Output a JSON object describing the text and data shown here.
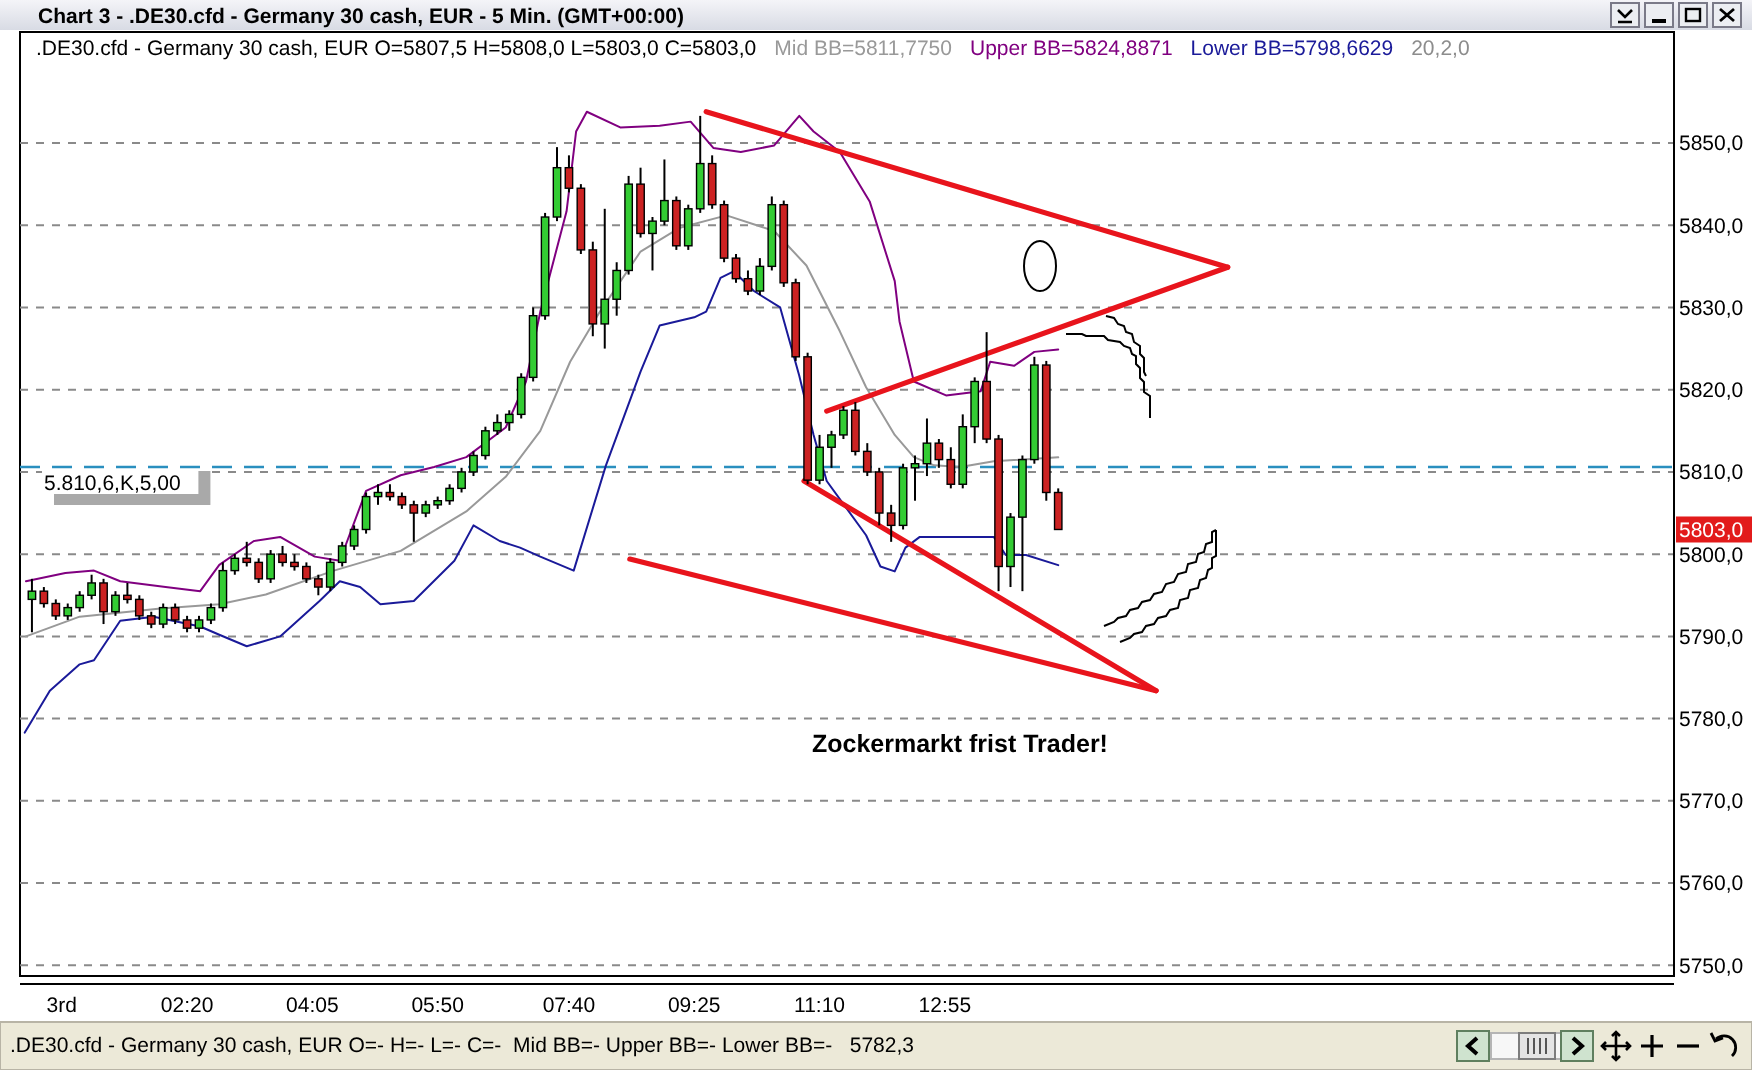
{
  "chart_data": {
    "type": "candlestick",
    "title": "Chart 3 - .DE30.cfd - Germany 30 cash, EUR - 5 Min. (GMT+00:00)",
    "subtitle": ".DE30.cfd - Germany 30 cash, EUR O=5807,5 H=5808,0 L=5803,0 C=5803,0",
    "x": [
      "--01-03T00:10",
      "--01-03T00:20",
      "--01-03T00:30",
      "--01-03T00:40",
      "--01-03T00:50",
      "--01-03T01:00",
      "--01-03T01:10",
      "--01-03T01:20",
      "--01-03T01:30",
      "--01-03T01:40",
      "--01-03T01:50",
      "--01-03T02:00",
      "--01-03T02:10",
      "--01-03T02:20",
      "--01-03T02:30",
      "--01-03T02:40",
      "--01-03T02:50",
      "--01-03T03:00",
      "--01-03T03:10",
      "--01-03T03:20",
      "--01-03T03:30",
      "--01-03T03:40",
      "--01-03T03:50",
      "--01-03T04:00",
      "--01-03T04:10",
      "--01-03T04:20",
      "--01-03T04:30",
      "--01-03T04:40",
      "--01-03T04:50",
      "--01-03T05:00",
      "--01-03T05:10",
      "--01-03T05:20",
      "--01-03T05:30",
      "--01-03T05:40",
      "--01-03T05:50",
      "--01-03T06:00",
      "--01-03T06:10",
      "--01-03T06:20",
      "--01-03T06:30",
      "--01-03T06:40",
      "--01-03T06:50",
      "--01-03T07:00",
      "--01-03T07:10",
      "--01-03T07:20",
      "--01-03T07:30",
      "--01-03T07:40",
      "--01-03T07:50",
      "--01-03T08:00",
      "--01-03T08:10",
      "--01-03T08:20",
      "--01-03T08:30",
      "--01-03T08:40",
      "--01-03T08:50",
      "--01-03T09:00",
      "--01-03T09:10",
      "--01-03T09:20",
      "--01-03T09:30",
      "--01-03T09:40",
      "--01-03T09:50",
      "--01-03T10:00",
      "--01-03T10:10",
      "--01-03T10:20",
      "--01-03T10:30",
      "--01-03T10:40",
      "--01-03T10:50",
      "--01-03T11:00",
      "--01-03T11:10",
      "--01-03T11:20",
      "--01-03T11:30",
      "--01-03T11:40",
      "--01-03T11:50",
      "--01-03T12:00",
      "--01-03T12:10",
      "--01-03T12:20",
      "--01-03T12:30",
      "--01-03T12:40",
      "--01-03T12:50",
      "--01-03T13:00",
      "--01-03T13:10",
      "--01-03T13:20",
      "--01-03T13:30",
      "--01-03T13:40",
      "--01-03T13:50",
      "--01-03T14:00",
      "--01-03T14:10",
      "--01-03T14:20",
      "--01-03T14:30"
    ],
    "ohlc": [
      [
        5794.5,
        5797,
        5790.5,
        5795.5
      ],
      [
        5795.5,
        5796,
        5793.5,
        5794
      ],
      [
        5794,
        5794.5,
        5792,
        5792.5
      ],
      [
        5792.5,
        5794,
        5792,
        5793.5
      ],
      [
        5793.5,
        5795.5,
        5793,
        5795
      ],
      [
        5795,
        5797.5,
        5794.5,
        5796.5
      ],
      [
        5796.5,
        5797,
        5791.5,
        5793
      ],
      [
        5793,
        5795.5,
        5792.5,
        5795
      ],
      [
        5795,
        5796.5,
        5794,
        5794.5
      ],
      [
        5794.5,
        5795,
        5792,
        5792.5
      ],
      [
        5792.5,
        5793,
        5791,
        5791.5
      ],
      [
        5791.5,
        5794,
        5791,
        5793.5
      ],
      [
        5793.5,
        5794,
        5791.5,
        5792
      ],
      [
        5792,
        5792.5,
        5790.5,
        5791
      ],
      [
        5791,
        5792.5,
        5790.5,
        5792
      ],
      [
        5792,
        5794,
        5791.5,
        5793.5
      ],
      [
        5793.5,
        5799,
        5793,
        5798
      ],
      [
        5798,
        5800,
        5797.5,
        5799.5
      ],
      [
        5799.5,
        5801.5,
        5798.5,
        5799
      ],
      [
        5799,
        5799.5,
        5796.5,
        5797
      ],
      [
        5797,
        5800.5,
        5796.5,
        5800
      ],
      [
        5800,
        5801,
        5798.5,
        5799
      ],
      [
        5799,
        5800,
        5798,
        5798.5
      ],
      [
        5798.5,
        5799,
        5796.5,
        5797
      ],
      [
        5797,
        5797.5,
        5795,
        5796
      ],
      [
        5796,
        5799.5,
        5795.5,
        5799
      ],
      [
        5799,
        5801.5,
        5798.5,
        5801
      ],
      [
        5801,
        5803.5,
        5800.5,
        5803
      ],
      [
        5803,
        5807.5,
        5802.5,
        5807
      ],
      [
        5807,
        5808.5,
        5806,
        5807.5
      ],
      [
        5807.5,
        5808.5,
        5806.5,
        5807
      ],
      [
        5807,
        5807.5,
        5805.5,
        5806
      ],
      [
        5806,
        5806.5,
        5801.5,
        5805
      ],
      [
        5805,
        5806.5,
        5804.5,
        5806
      ],
      [
        5806,
        5807,
        5805.5,
        5806.5
      ],
      [
        5806.5,
        5808.5,
        5806,
        5808
      ],
      [
        5808,
        5810.5,
        5807.5,
        5810
      ],
      [
        5810,
        5812.5,
        5809.5,
        5812
      ],
      [
        5812,
        5815.5,
        5811.5,
        5815
      ],
      [
        5815,
        5817,
        5814.5,
        5816
      ],
      [
        5816,
        5817.5,
        5815,
        5817
      ],
      [
        5817,
        5822,
        5816.5,
        5821.5
      ],
      [
        5821.5,
        5830,
        5821,
        5829
      ],
      [
        5829,
        5841.5,
        5828.5,
        5841
      ],
      [
        5841,
        5849.5,
        5840.5,
        5847
      ],
      [
        5847,
        5848.5,
        5844,
        5844.5
      ],
      [
        5844.5,
        5845,
        5836.5,
        5837
      ],
      [
        5837,
        5838,
        5826.5,
        5828
      ],
      [
        5828,
        5842,
        5825,
        5831
      ],
      [
        5831,
        5835.5,
        5829,
        5834.5
      ],
      [
        5834.5,
        5846,
        5834,
        5845
      ],
      [
        5845,
        5847,
        5838.5,
        5839
      ],
      [
        5839,
        5841,
        5834.5,
        5840.5
      ],
      [
        5840.5,
        5848,
        5840,
        5843
      ],
      [
        5843,
        5843.5,
        5837,
        5837.5
      ],
      [
        5837.5,
        5842.5,
        5837,
        5842
      ],
      [
        5842,
        5853.3,
        5841.5,
        5847.5
      ],
      [
        5847.5,
        5848.5,
        5842,
        5842.5
      ],
      [
        5842.5,
        5843,
        5835.5,
        5836
      ],
      [
        5836,
        5836.5,
        5833,
        5833.5
      ],
      [
        5833.5,
        5834.5,
        5831.5,
        5832
      ],
      [
        5832,
        5836,
        5831.5,
        5835
      ],
      [
        5835,
        5843.5,
        5834.5,
        5842.5
      ],
      [
        5842.5,
        5843,
        5832.5,
        5833
      ],
      [
        5833,
        5833.5,
        5823.5,
        5824
      ],
      [
        5824,
        5824.5,
        5808.5,
        5809
      ],
      [
        5809,
        5814.5,
        5808.5,
        5813
      ],
      [
        5813,
        5815,
        5810.5,
        5814.5
      ],
      [
        5814.5,
        5818,
        5814,
        5817.5
      ],
      [
        5817.5,
        5818.5,
        5812,
        5812.5
      ],
      [
        5812.5,
        5813.5,
        5809.5,
        5810
      ],
      [
        5810,
        5810.5,
        5803.5,
        5805
      ],
      [
        5805,
        5806,
        5801.5,
        5803.5
      ],
      [
        5803.5,
        5811,
        5803,
        5810.5
      ],
      [
        5810.5,
        5812,
        5806.5,
        5811
      ],
      [
        5811,
        5816.5,
        5809.5,
        5813.5
      ],
      [
        5813.5,
        5814,
        5810.5,
        5811.5
      ],
      [
        5811.5,
        5813,
        5808,
        5808.5
      ],
      [
        5808.5,
        5817,
        5808,
        5815.5
      ],
      [
        5815.5,
        5821.5,
        5813.5,
        5821
      ],
      [
        5821,
        5827,
        5813.5,
        5814
      ],
      [
        5814,
        5814.5,
        5795.5,
        5798.5
      ],
      [
        5798.5,
        5805,
        5796,
        5804.5
      ],
      [
        5804.5,
        5812,
        5795.5,
        5811.5
      ],
      [
        5811.5,
        5824,
        5811,
        5823
      ],
      [
        5823,
        5823.5,
        5806.5,
        5807.5
      ],
      [
        5807.5,
        5808,
        5803,
        5803
      ]
    ],
    "colors": [
      "#33cc33",
      "#cc2222",
      "#cc2222",
      "#33cc33",
      "#33cc33",
      "#33cc33",
      "#cc2222",
      "#33cc33",
      "#cc2222",
      "#cc2222",
      "#cc2222",
      "#33cc33",
      "#cc2222",
      "#cc2222",
      "#33cc33",
      "#33cc33",
      "#33cc33",
      "#33cc33",
      "#cc2222",
      "#cc2222",
      "#33cc33",
      "#cc2222",
      "#cc2222",
      "#cc2222",
      "#cc2222",
      "#33cc33",
      "#33cc33",
      "#33cc33",
      "#33cc33",
      "#33cc33",
      "#cc2222",
      "#cc2222",
      "#cc2222",
      "#33cc33",
      "#33cc33",
      "#33cc33",
      "#33cc33",
      "#33cc33",
      "#33cc33",
      "#33cc33",
      "#33cc33",
      "#33cc33",
      "#33cc33",
      "#33cc33",
      "#33cc33",
      "#cc2222",
      "#cc2222",
      "#cc2222",
      "#33cc33",
      "#33cc33",
      "#33cc33",
      "#cc2222",
      "#33cc33",
      "#33cc33",
      "#cc2222",
      "#33cc33",
      "#33cc33",
      "#cc2222",
      "#cc2222",
      "#cc2222",
      "#cc2222",
      "#33cc33",
      "#33cc33",
      "#cc2222",
      "#cc2222",
      "#cc2222",
      "#33cc33",
      "#33cc33",
      "#33cc33",
      "#cc2222",
      "#cc2222",
      "#cc2222",
      "#cc2222",
      "#33cc33",
      "#33cc33",
      "#33cc33",
      "#cc2222",
      "#cc2222",
      "#33cc33",
      "#33cc33",
      "#cc2222",
      "#cc2222",
      "#33cc33",
      "#33cc33",
      "#33cc33",
      "#cc2222",
      "#cc2222"
    ],
    "series": [
      {
        "name": "Mid BB=5811,7750",
        "type": "line",
        "color": "#999999",
        "x": [
          "--01-03T00:05",
          "--01-03T00:50",
          "--01-03T01:58",
          "--01-03T02:47",
          "--01-03T03:26",
          "--01-03T04:23",
          "--01-03T05:19",
          "--01-03T06:14",
          "--01-03T06:47",
          "--01-03T07:16",
          "--01-03T07:41",
          "--01-03T08:06",
          "--01-03T08:40",
          "--01-03T09:13",
          "--01-03T09:52",
          "--01-03T10:32",
          "--01-03T10:59",
          "--01-03T11:27",
          "--01-03T11:49",
          "--01-03T12:13",
          "--01-03T12:29",
          "--01-03T12:46",
          "--01-03T13:08",
          "--01-03T13:36",
          "--01-03T14:30"
        ],
        "values": [
          5790,
          5792.4,
          5793.4,
          5793.9,
          5795.1,
          5798,
          5800.4,
          5805.2,
          5809.4,
          5815,
          5823.4,
          5829.5,
          5836.8,
          5839.7,
          5841.2,
          5839.3,
          5835.1,
          5827.1,
          5820.3,
          5814.5,
          5811.8,
          5810.8,
          5810.6,
          5811.3,
          5811.775
        ]
      },
      {
        "name": "Upper BB=5824,8871",
        "type": "line",
        "color": "#800080",
        "x": [
          "--01-03T00:05",
          "--01-03T00:38",
          "--01-03T01:02",
          "--01-03T01:24",
          "--01-03T02:02",
          "--01-03T02:31",
          "--01-03T02:47",
          "--01-03T03:16",
          "--01-03T03:38",
          "--01-03T04:07",
          "--01-03T04:28",
          "--01-03T04:50",
          "--01-03T05:19",
          "--01-03T05:47",
          "--01-03T06:14",
          "--01-03T06:47",
          "--01-03T07:04",
          "--01-03T07:16",
          "--01-03T07:38",
          "--01-03T07:46",
          "--01-03T07:55",
          "--01-03T08:23",
          "--01-03T08:56",
          "--01-03T09:22",
          "--01-03T09:41",
          "--01-03T10:04",
          "--01-03T10:32",
          "--01-03T10:53",
          "--01-03T11:05",
          "--01-03T11:27",
          "--01-03T11:52",
          "--01-03T12:13",
          "--01-03T12:17",
          "--01-03T12:29",
          "--01-03T12:56",
          "--01-03T13:25",
          "--01-03T13:33",
          "--01-03T13:53",
          "--01-03T14:10",
          "--01-03T14:30"
        ],
        "values": [
          5796.7,
          5797.7,
          5798,
          5796.7,
          5796,
          5795.5,
          5798.7,
          5801.6,
          5802.1,
          5799.7,
          5799.2,
          5807.7,
          5809.6,
          5810.6,
          5811.8,
          5815.4,
          5821,
          5829.5,
          5841.7,
          5851.4,
          5853.8,
          5851.9,
          5852.1,
          5852.6,
          5849.4,
          5848.9,
          5849.7,
          5853.3,
          5851.4,
          5848.9,
          5842.9,
          5833.2,
          5828.3,
          5821,
          5819.3,
          5819.8,
          5823.4,
          5822.9,
          5824.6,
          5824.8871
        ]
      },
      {
        "name": "Lower BB=5798,6629",
        "type": "line",
        "color": "#1a1a99",
        "x": [
          "--01-03T00:04",
          "--01-03T00:25",
          "--01-03T00:50",
          "--01-03T01:02",
          "--01-03T01:24",
          "--01-03T01:52",
          "--01-03T02:31",
          "--01-03T02:47",
          "--01-03T03:10",
          "--01-03T03:38",
          "--01-03T04:11",
          "--01-03T04:28",
          "--01-03T04:45",
          "--01-03T05:02",
          "--01-03T05:30",
          "--01-03T06:04",
          "--01-03T06:20",
          "--01-03T06:42",
          "--01-03T06:59",
          "--01-03T07:16",
          "--01-03T07:44",
          "--01-03T08:11",
          "--01-03T08:40",
          "--01-03T08:56",
          "--01-03T09:25",
          "--01-03T09:35",
          "--01-03T09:47",
          "--01-03T09:58",
          "--01-03T10:15",
          "--01-03T10:37",
          "--01-03T10:53",
          "--01-03T11:05",
          "--01-03T11:16",
          "--01-03T11:32",
          "--01-03T11:49",
          "--01-03T12:01",
          "--01-03T12:13",
          "--01-03T12:22",
          "--01-03T12:34",
          "--01-03T13:08",
          "--01-03T13:36",
          "--01-03T13:46",
          "--01-03T14:03",
          "--01-03T14:30"
        ],
        "values": [
          5778.3,
          5783.4,
          5786.6,
          5787.1,
          5791.9,
          5792.4,
          5791.2,
          5790.2,
          5788.8,
          5790,
          5794.3,
          5796.7,
          5796,
          5793.9,
          5794.3,
          5799.2,
          5803.5,
          5801.6,
          5800.8,
          5799.7,
          5798,
          5810.8,
          5822.2,
          5827.8,
          5828.8,
          5829.5,
          5833.6,
          5834.4,
          5832,
          5830,
          5821.7,
          5814.5,
          5808.9,
          5805.7,
          5802.3,
          5798.5,
          5797.9,
          5800.8,
          5802.1,
          5802.1,
          5802.1,
          5799.9,
          5799.9,
          5798.6629
        ]
      },
      {
        "type": "line",
        "color": "#e8141c",
        "x": [
          "--01-03T09:35",
          "--01-03T16:52"
        ],
        "values": [
          5853.8,
          5834.9
        ]
      },
      {
        "type": "line",
        "color": "#e8141c",
        "x": [
          "--01-03T11:16",
          "--01-03T16:52"
        ],
        "values": [
          5817.4,
          5834.9
        ]
      },
      {
        "type": "line",
        "color": "#e8141c",
        "x": [
          "--01-03T10:57",
          "--01-03T15:52"
        ],
        "values": [
          5808.9,
          5783.4
        ]
      },
      {
        "type": "line",
        "color": "#e8141c",
        "x": [
          "--01-03T08:31",
          "--01-03T15:52"
        ],
        "values": [
          5799.4,
          5783.4
        ]
      }
    ],
    "xlim": [
      "--01-03T00:00",
      "--01-03T23:06"
    ],
    "ylim": [
      5748.7,
      5863.5
    ],
    "xticks": [
      {
        "value": "--01-03T00:35",
        "label": "3rd"
      },
      {
        "value": "--01-03T02:20",
        "label": "02:20"
      },
      {
        "value": "--01-03T04:05",
        "label": "04:05"
      },
      {
        "value": "--01-03T05:50",
        "label": "05:50"
      },
      {
        "value": "--01-03T07:40",
        "label": "07:40"
      },
      {
        "value": "--01-03T09:25",
        "label": "09:25"
      },
      {
        "value": "--01-03T11:10",
        "label": "11:10"
      },
      {
        "value": "--01-03T12:55",
        "label": "12:55"
      }
    ],
    "yticks": [
      {
        "value": 5750,
        "label": "5750,0"
      },
      {
        "value": 5760,
        "label": "5760,0"
      },
      {
        "value": 5770,
        "label": "5770,0"
      },
      {
        "value": 5780,
        "label": "5780,0"
      },
      {
        "value": 5790,
        "label": "5790,0"
      },
      {
        "value": 5800,
        "label": "5800,0"
      },
      {
        "value": 5810,
        "label": "5810,0"
      },
      {
        "value": 5820,
        "label": "5820,0"
      },
      {
        "value": 5830,
        "label": "5830,0"
      },
      {
        "value": 5840,
        "label": "5840,0"
      },
      {
        "value": 5850,
        "label": "5850,0"
      }
    ],
    "grid": "y",
    "legend": "top",
    "ref_lines": [
      {
        "axis": "y",
        "value": 5810.6,
        "label": "5.810,6,K,5,00",
        "color": "#2a8fbf",
        "line_style": "dashed"
      }
    ],
    "annotations": [
      "20,2,0",
      "Zockermarkt frist Trader!",
      {
        "text": "5803,0",
        "y": 5803
      },
      ".DE30.cfd - Germany 30 cash, EUR O=- H=- L=- C=-  Mid BB=- Upper BB=- Lower BB=-   5782,3"
    ]
  }
}
